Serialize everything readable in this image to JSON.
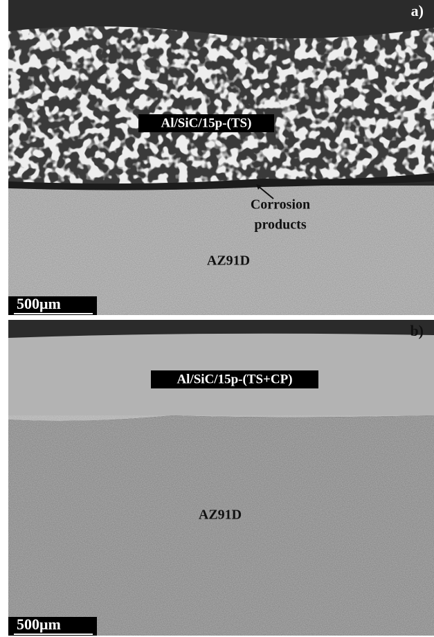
{
  "panels": [
    {
      "label": "a)",
      "coating": "Al/SiC/15p-(TS)",
      "annotation": [
        "Corrosion",
        "products"
      ],
      "substrate": "AZ91D",
      "scale_bar": "500μm"
    },
    {
      "label": "b)",
      "coating": "Al/SiC/15p-(TS+CP)",
      "substrate": "AZ91D",
      "scale_bar": "500μm"
    }
  ]
}
